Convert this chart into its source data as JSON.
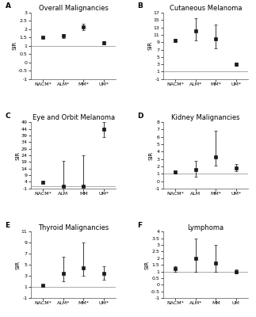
{
  "panels": [
    {
      "label": "A",
      "title": "Overall Malignancies",
      "ylabel": "SIR",
      "categories": [
        "NACM*",
        "ALM*",
        "MM*",
        "UM*"
      ],
      "values": [
        1.5,
        1.6,
        2.15,
        1.2
      ],
      "yerr_low": [
        0.05,
        0.12,
        0.2,
        0.1
      ],
      "yerr_high": [
        0.05,
        0.12,
        0.2,
        0.1
      ],
      "ylim": [
        -1,
        3
      ],
      "yticks": [
        -1,
        -0.5,
        0,
        0.5,
        1,
        1.5,
        2,
        2.5,
        3
      ],
      "yticklabels": [
        "-1",
        "-0.5",
        "0",
        "0.5",
        "1",
        "1.5",
        "2",
        "2.5",
        "3"
      ]
    },
    {
      "label": "B",
      "title": "Cutaneous Melanoma",
      "ylabel": "SIR",
      "categories": [
        "NACM*",
        "ALM*",
        "MM*",
        "UM*"
      ],
      "values": [
        9.5,
        12.0,
        9.8,
        3.0
      ],
      "yerr_low": [
        0.4,
        2.5,
        2.5,
        0.5
      ],
      "yerr_high": [
        0.4,
        3.5,
        4.0,
        0.5
      ],
      "ylim": [
        -1,
        17
      ],
      "yticks": [
        -1,
        1,
        3,
        5,
        7,
        9,
        11,
        13,
        15,
        17
      ],
      "yticklabels": [
        "-1",
        "1",
        "3",
        "5",
        "7",
        "9",
        "11",
        "13",
        "15",
        "17"
      ]
    },
    {
      "label": "C",
      "title": "Eye and Orbit Melanoma",
      "ylabel": "SIR",
      "categories": [
        "NACM*",
        "ALM",
        "MM",
        "UM*"
      ],
      "values": [
        3.5,
        1.0,
        1.0,
        44.0
      ],
      "yerr_low": [
        0.5,
        0.8,
        0.8,
        6.0
      ],
      "yerr_high": [
        0.5,
        19.0,
        23.0,
        5.0
      ],
      "ylim": [
        -1,
        49
      ],
      "yticks": [
        -1,
        4,
        9,
        14,
        19,
        24,
        29,
        34,
        39,
        44,
        49
      ],
      "yticklabels": [
        "-1",
        "4",
        "9",
        "14",
        "19",
        "24",
        "29",
        "34",
        "39",
        "44",
        "49"
      ]
    },
    {
      "label": "D",
      "title": "Kidney Malignancies",
      "ylabel": "SIR",
      "categories": [
        "NACM*",
        "ALM",
        "MM*",
        "UM*"
      ],
      "values": [
        1.2,
        1.6,
        3.3,
        1.8
      ],
      "yerr_low": [
        0.15,
        1.0,
        1.2,
        0.5
      ],
      "yerr_high": [
        0.15,
        1.2,
        3.5,
        0.5
      ],
      "ylim": [
        -1,
        8
      ],
      "yticks": [
        -1,
        0,
        1,
        2,
        3,
        4,
        5,
        6,
        7,
        8
      ],
      "yticklabels": [
        "-1",
        "0",
        "1",
        "2",
        "3",
        "4",
        "5",
        "6",
        "7",
        "8"
      ]
    },
    {
      "label": "E",
      "title": "Thyroid Malignancies",
      "ylabel": "SIR",
      "categories": [
        "NACM*",
        "ALM*",
        "MM*",
        "UM*"
      ],
      "values": [
        1.3,
        3.5,
        4.5,
        3.5
      ],
      "yerr_low": [
        0.15,
        1.5,
        1.5,
        1.2
      ],
      "yerr_high": [
        0.15,
        3.0,
        4.5,
        1.2
      ],
      "ylim": [
        -1,
        11
      ],
      "yticks": [
        -1,
        1,
        3,
        5,
        7,
        9,
        11
      ],
      "yticklabels": [
        "-1",
        "1",
        "3",
        "5",
        "7",
        "9",
        "11"
      ]
    },
    {
      "label": "F",
      "title": "Lymphoma",
      "ylabel": "SIR",
      "categories": [
        "NACM*",
        "ALM*",
        "MM",
        "UM"
      ],
      "values": [
        1.2,
        2.0,
        1.6,
        1.0
      ],
      "yerr_low": [
        0.2,
        1.0,
        0.6,
        0.15
      ],
      "yerr_high": [
        0.2,
        1.5,
        1.4,
        0.15
      ],
      "ylim": [
        -1,
        4
      ],
      "yticks": [
        -1,
        -0.5,
        0,
        0.5,
        1,
        1.5,
        2,
        2.5,
        3,
        3.5,
        4
      ],
      "yticklabels": [
        "-1",
        "-0.5",
        "0",
        "0.5",
        "1",
        "1.5",
        "2",
        "2.5",
        "3",
        "3.5",
        "4"
      ]
    }
  ],
  "background_color": "#ffffff",
  "marker_color": "#1a1a1a",
  "hline_color": "#aaaaaa",
  "marker_size": 3.5,
  "line_color": "#1a1a1a",
  "tick_fontsize": 4.5,
  "label_fontsize": 5.0,
  "title_fontsize": 6.0,
  "panel_label_fontsize": 6.5,
  "capsize": 1.5,
  "elinewidth": 0.6,
  "capthick": 0.6,
  "spine_linewidth": 0.5
}
